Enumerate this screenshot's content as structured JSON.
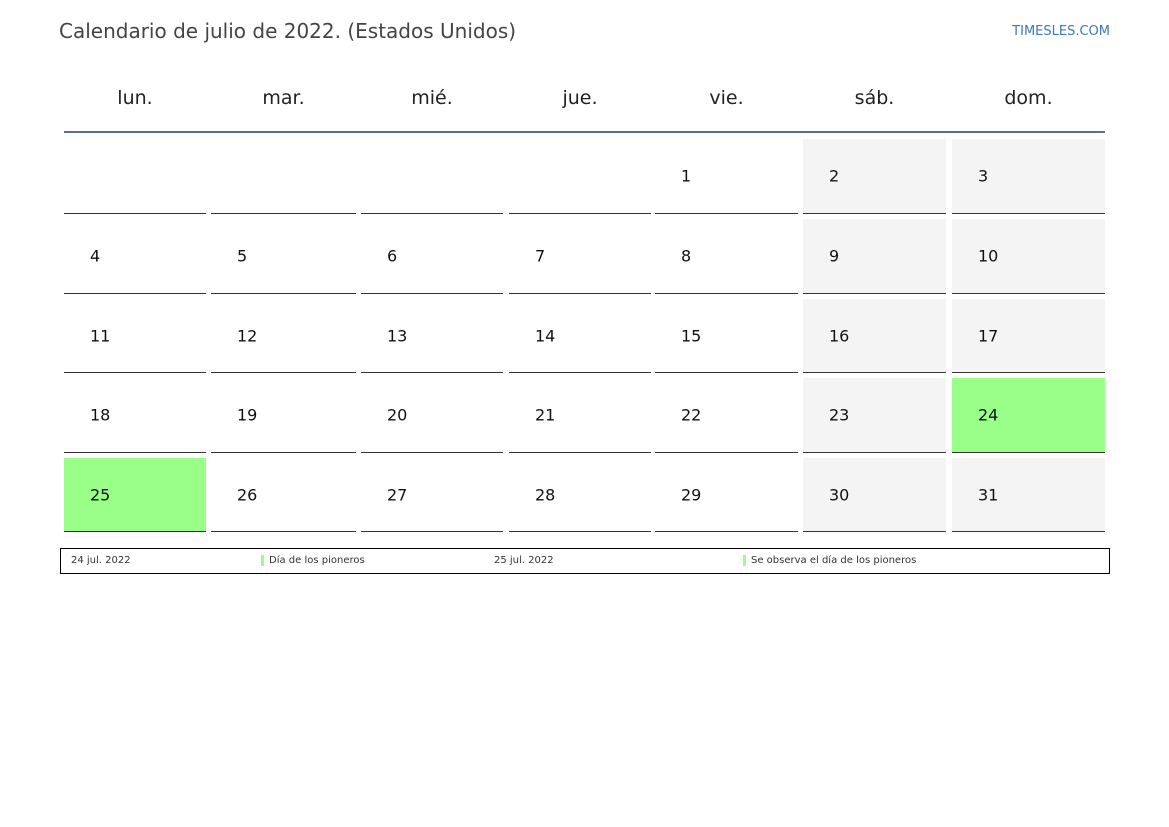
{
  "header": {
    "title": "Calendario de julio de 2022. (Estados Unidos)",
    "site": "TIMESLES.COM"
  },
  "weekdays": [
    "lun.",
    "mar.",
    "mié.",
    "jue.",
    "vie.",
    "sáb.",
    "dom."
  ],
  "weeks": [
    [
      null,
      null,
      null,
      null,
      1,
      2,
      3
    ],
    [
      4,
      5,
      6,
      7,
      8,
      9,
      10
    ],
    [
      11,
      12,
      13,
      14,
      15,
      16,
      17
    ],
    [
      18,
      19,
      20,
      21,
      22,
      23,
      {
        "day": 24,
        "color": "#99ff88"
      }
    ],
    [
      {
        "day": 25,
        "color": "#99ff88"
      },
      26,
      27,
      28,
      29,
      30,
      31
    ]
  ],
  "holidays": [
    {
      "date": "24 jul. 2022",
      "name": "Día de los pioneros",
      "color": "#99ff88"
    },
    {
      "date": "25 jul. 2022",
      "name": "Se observa el día de los pioneros",
      "color": "#99ff88"
    }
  ]
}
